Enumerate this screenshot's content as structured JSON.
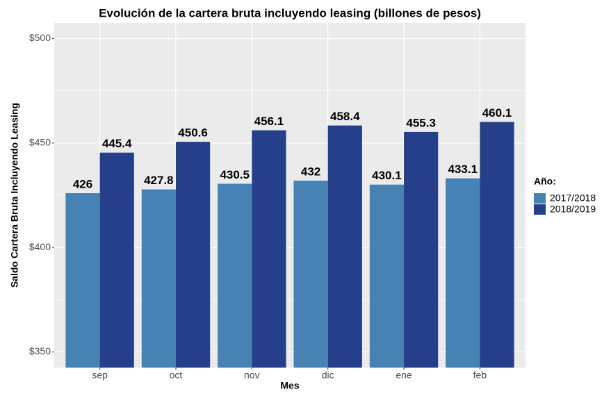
{
  "chart_data": {
    "type": "bar",
    "title": "Evolución de la cartera bruta incluyendo leasing (billones de pesos)",
    "x_label": "Mes",
    "y_label": "Saldo Cartera Bruta Incluyendo Leasing",
    "categories": [
      "sep",
      "oct",
      "nov",
      "dic",
      "ene",
      "feb"
    ],
    "legend_title": "Año:",
    "series": [
      {
        "name": "2017/2018",
        "color": "#4682b4",
        "values": [
          426,
          427.8,
          430.5,
          432,
          430.1,
          433.1
        ]
      },
      {
        "name": "2018/2019",
        "color": "#253f8b",
        "values": [
          445.4,
          450.6,
          456.1,
          458.4,
          455.3,
          460.1
        ]
      }
    ],
    "ylim": [
      342.5,
      507.5
    ],
    "yticks": [
      {
        "value": 350,
        "label": "$350"
      },
      {
        "value": 400,
        "label": "$400"
      },
      {
        "value": 450,
        "label": "$450"
      },
      {
        "value": 500,
        "label": "$500"
      }
    ],
    "grid": true
  }
}
